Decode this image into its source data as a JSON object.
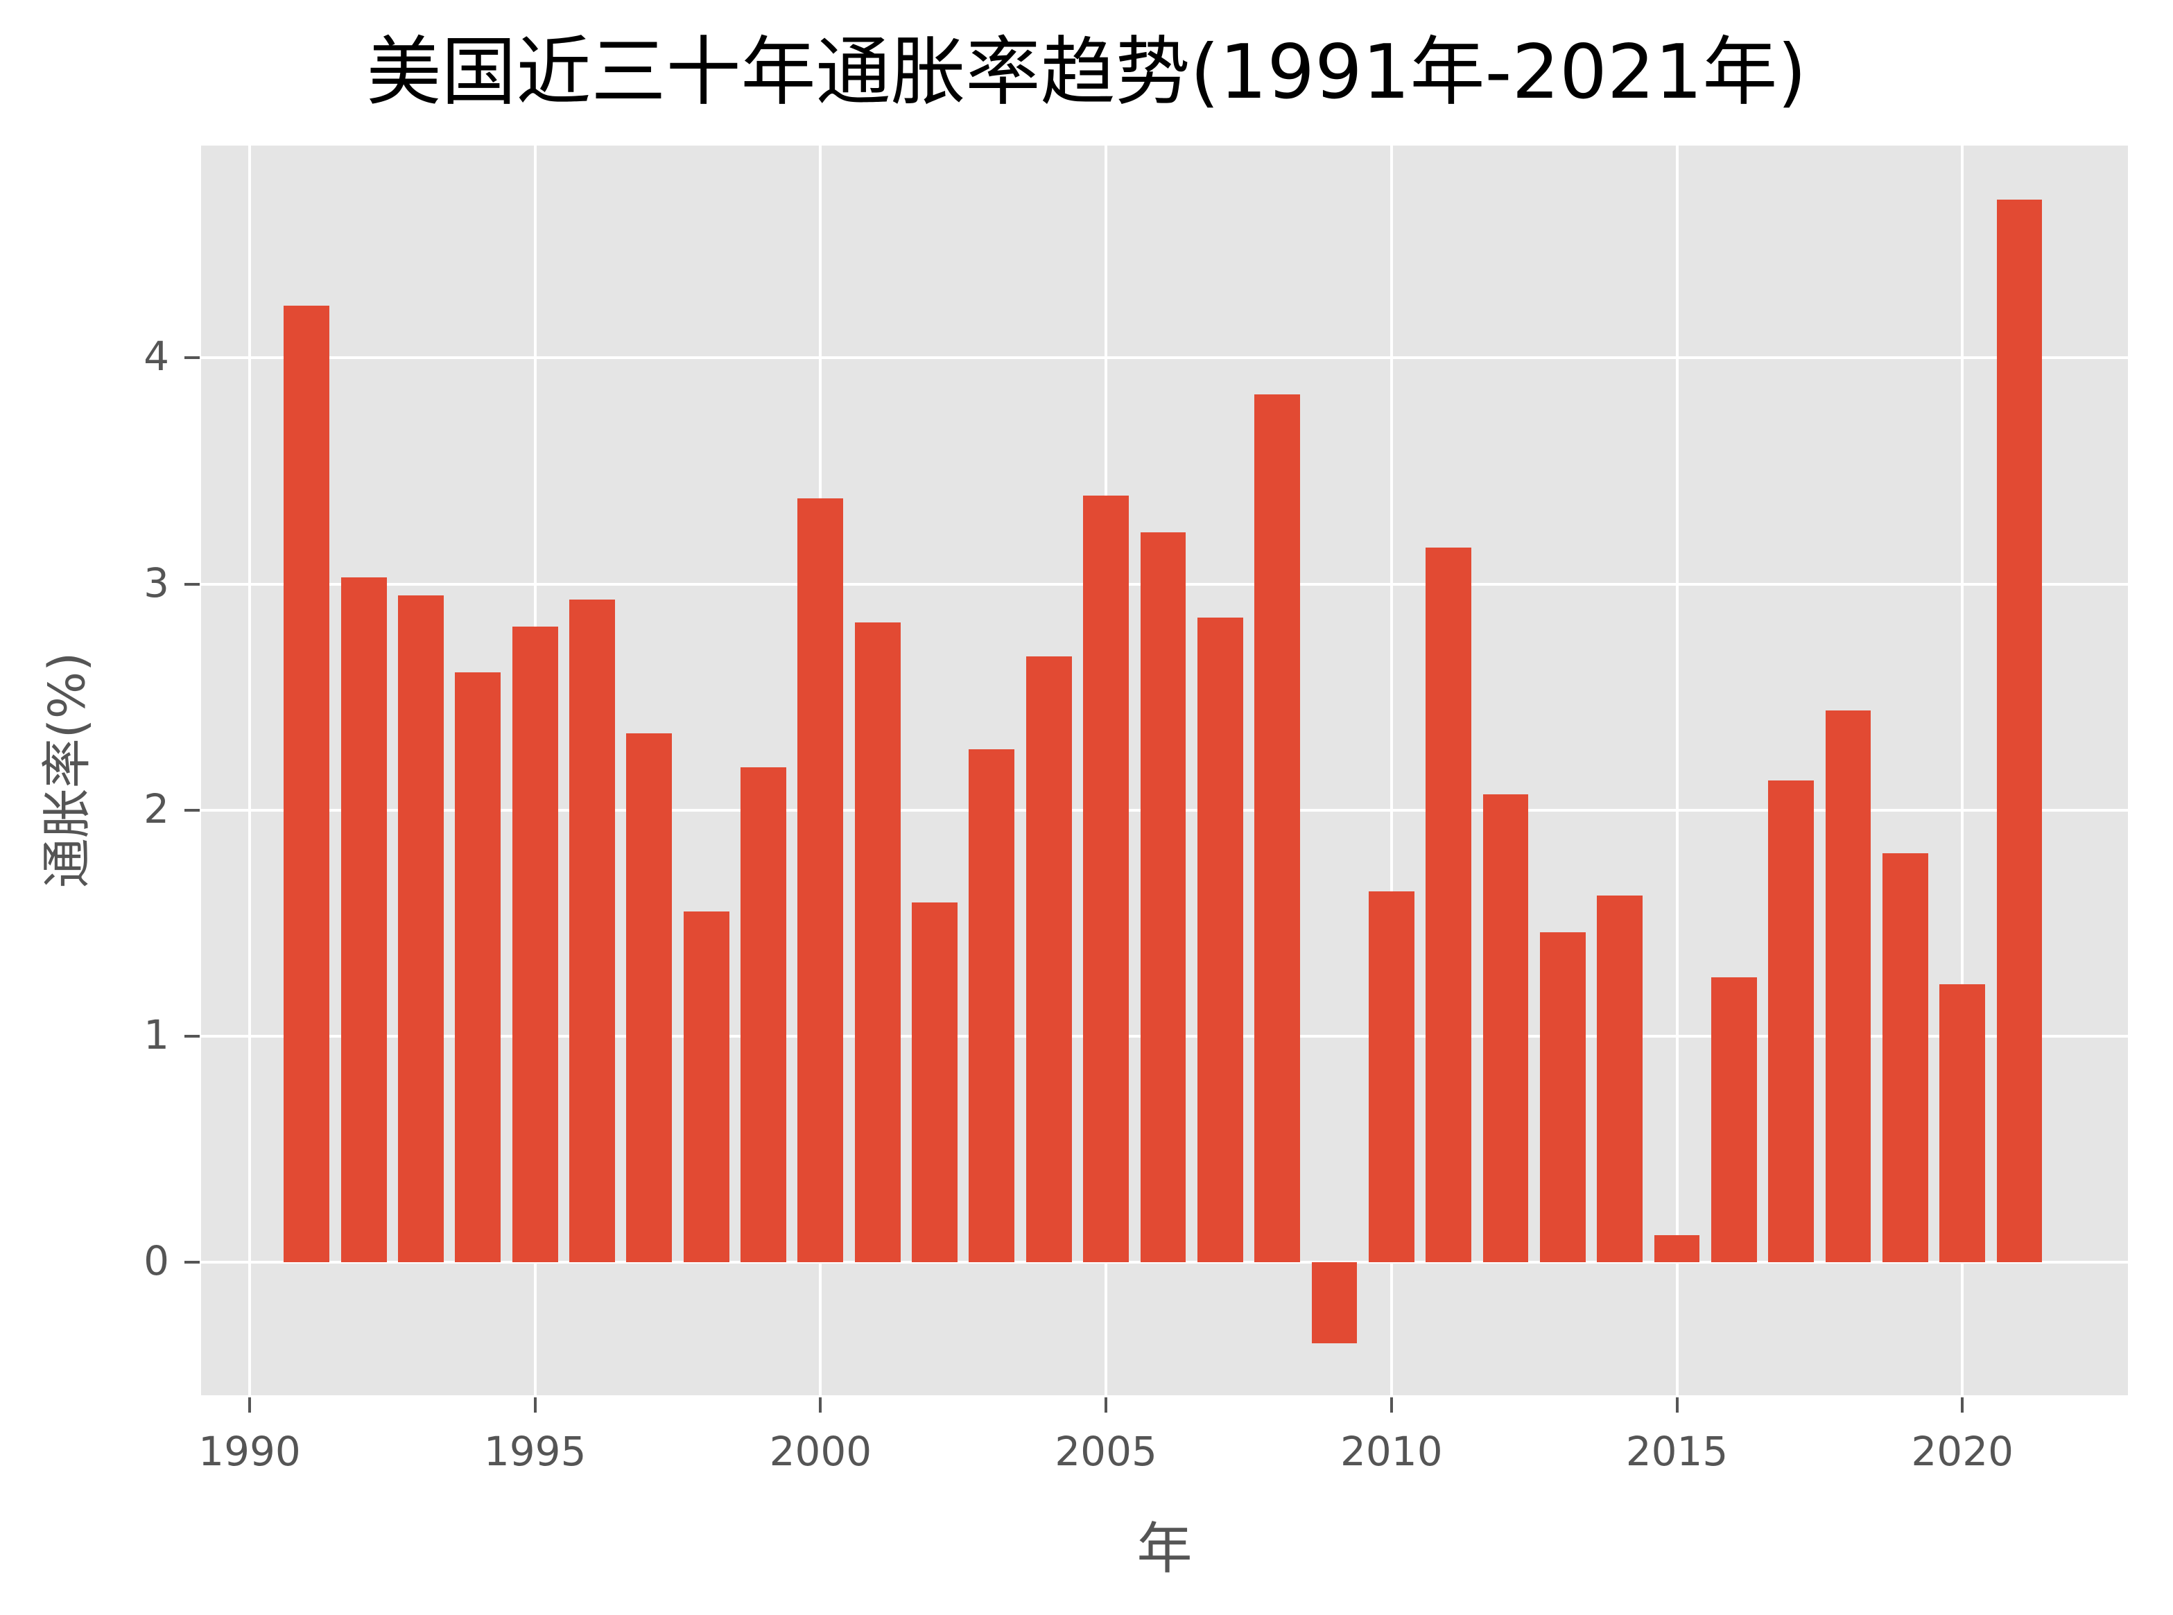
{
  "chart_data": {
    "type": "bar",
    "title": "美国近三十年通胀率趋势(1991年-2021年)",
    "xlabel": "年",
    "ylabel": "通胀率(%)",
    "x": [
      1991,
      1992,
      1993,
      1994,
      1995,
      1996,
      1997,
      1998,
      1999,
      2000,
      2001,
      2002,
      2003,
      2004,
      2005,
      2006,
      2007,
      2008,
      2009,
      2010,
      2011,
      2012,
      2013,
      2014,
      2015,
      2016,
      2017,
      2018,
      2019,
      2020,
      2021
    ],
    "values": [
      4.23,
      3.03,
      2.95,
      2.61,
      2.81,
      2.93,
      2.34,
      1.55,
      2.19,
      3.38,
      2.83,
      1.59,
      2.27,
      2.68,
      3.39,
      3.23,
      2.85,
      3.84,
      -0.36,
      1.64,
      3.16,
      2.07,
      1.46,
      1.62,
      0.12,
      1.26,
      2.13,
      2.44,
      1.81,
      1.23,
      4.7
    ],
    "xticks": [
      1990,
      1995,
      2000,
      2005,
      2010,
      2015,
      2020
    ],
    "yticks": [
      0,
      1,
      2,
      3,
      4
    ],
    "xlim": [
      1989.15,
      2022.9
    ],
    "ylim": [
      -0.59,
      4.94
    ],
    "grid": true,
    "bar_color": "#E24A33",
    "background_color": "#E5E5E5",
    "legend": null
  }
}
